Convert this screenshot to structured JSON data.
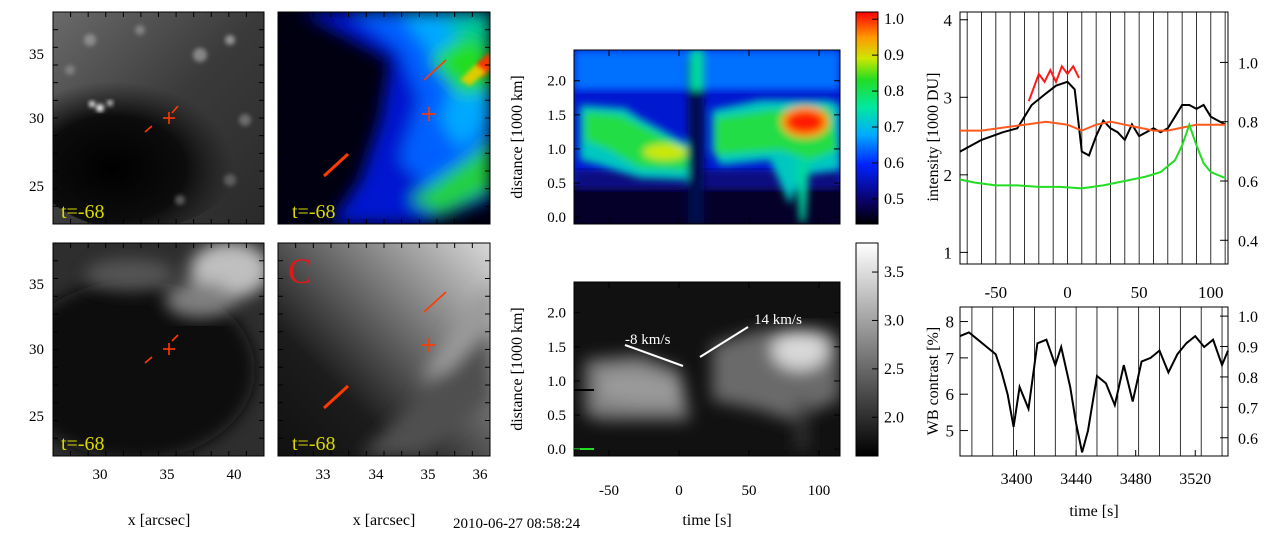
{
  "timestamp": "2010-06-27 08:58:24",
  "panels": {
    "img_label": "t=-68",
    "panel_letter": "C",
    "x_label": "x [arcsec]",
    "left_x_ticks": [
      "30",
      "35",
      "40"
    ],
    "mid_x_ticks": [
      "33",
      "34",
      "35",
      "36"
    ],
    "y_ticks": [
      "35",
      "30",
      "25"
    ]
  },
  "colors": {
    "marker": "#ff3a00",
    "label": "#d8d800",
    "red_curve": "#ff1a1a",
    "orange_curve": "#ff5a1e",
    "green_curve": "#22dd22"
  },
  "chart_data": [
    {
      "type": "heatmap",
      "name": "time-distance-color",
      "xlabel": "time [s]",
      "ylabel": "distance [1000 km]",
      "xlim": [
        -75,
        115
      ],
      "ylim": [
        -0.1,
        2.45
      ],
      "y_ticks": [
        "0.0",
        "0.5",
        "1.0",
        "1.5",
        "2.0"
      ],
      "colorbar": {
        "range": [
          0.43,
          1.02
        ],
        "ticks": [
          "1.0",
          "0.9",
          "0.8",
          "0.7",
          "0.6",
          "0.5"
        ]
      }
    },
    {
      "type": "heatmap",
      "name": "time-distance-gray",
      "xlabel": "time [s]",
      "ylabel": "distance [1000 km]",
      "xlim": [
        -75,
        115
      ],
      "ylim": [
        -0.1,
        2.45
      ],
      "x_ticks": [
        "-50",
        "0",
        "50",
        "100"
      ],
      "y_ticks": [
        "0.0",
        "0.5",
        "1.0",
        "1.5",
        "2.0"
      ],
      "colorbar": {
        "range": [
          1.6,
          3.8
        ],
        "ticks": [
          "3.5",
          "3.0",
          "2.5",
          "2.0"
        ]
      },
      "annotations": [
        "-8 km/s",
        "14 km/s"
      ]
    },
    {
      "type": "line",
      "name": "intensity-lightcurves",
      "ylabel": "intensity [1000 DU]",
      "xlim": [
        -75,
        112
      ],
      "ylim_left": [
        0.85,
        4.1
      ],
      "ylim_right": [
        0.32,
        1.17
      ],
      "x_ticks": [
        "-50",
        "0",
        "50",
        "100"
      ],
      "left_ticks": [
        "4",
        "3",
        "2",
        "1"
      ],
      "right_ticks": [
        "1.0",
        "0.8",
        "0.6",
        "0.4"
      ],
      "series": [
        {
          "name": "red",
          "axis": "left",
          "x": [
            -27,
            -24,
            -20,
            -16,
            -12,
            -8,
            -4,
            0,
            4,
            8
          ],
          "values": [
            2.95,
            3.1,
            3.3,
            3.2,
            3.35,
            3.2,
            3.4,
            3.3,
            3.4,
            3.25
          ]
        },
        {
          "name": "black",
          "axis": "left",
          "x": [
            -75,
            -60,
            -45,
            -35,
            -30,
            -25,
            -15,
            -8,
            0,
            5,
            10,
            15,
            20,
            25,
            30,
            35,
            40,
            45,
            50,
            55,
            60,
            65,
            70,
            75,
            80,
            85,
            90,
            95,
            100,
            105,
            110
          ],
          "values": [
            2.3,
            2.45,
            2.55,
            2.6,
            2.75,
            2.9,
            3.05,
            3.15,
            3.2,
            3.1,
            2.3,
            2.25,
            2.5,
            2.7,
            2.6,
            2.55,
            2.45,
            2.65,
            2.5,
            2.55,
            2.6,
            2.55,
            2.6,
            2.75,
            2.9,
            2.9,
            2.85,
            2.9,
            2.75,
            2.7,
            2.65
          ]
        },
        {
          "name": "orange",
          "axis": "right",
          "x": [
            -75,
            -60,
            -45,
            -30,
            -15,
            0,
            10,
            20,
            30,
            40,
            50,
            60,
            70,
            80,
            90,
            100,
            110
          ],
          "values": [
            0.77,
            0.77,
            0.78,
            0.79,
            0.8,
            0.79,
            0.77,
            0.79,
            0.8,
            0.79,
            0.78,
            0.77,
            0.77,
            0.78,
            0.79,
            0.79,
            0.79
          ]
        },
        {
          "name": "green",
          "axis": "right",
          "x": [
            -75,
            -65,
            -50,
            -35,
            -20,
            -5,
            10,
            25,
            40,
            55,
            65,
            75,
            80,
            85,
            90,
            95,
            100,
            110
          ],
          "values": [
            0.605,
            0.595,
            0.585,
            0.585,
            0.58,
            0.58,
            0.575,
            0.585,
            0.6,
            0.615,
            0.63,
            0.67,
            0.72,
            0.79,
            0.72,
            0.66,
            0.63,
            0.61
          ]
        }
      ]
    },
    {
      "type": "line",
      "name": "wb-contrast",
      "xlabel": "time [s]",
      "ylabel": "WB contrast [%]",
      "xlim": [
        3362,
        3542
      ],
      "ylim_left": [
        4.3,
        8.4
      ],
      "ylim_right": [
        0.54,
        1.03
      ],
      "x_ticks": [
        "3400",
        "3440",
        "3480",
        "3520"
      ],
      "left_ticks": [
        "8",
        "7",
        "6",
        "5"
      ],
      "right_ticks": [
        "1.0",
        "0.9",
        "0.8",
        "0.7",
        "0.6"
      ],
      "series": [
        {
          "name": "contrast",
          "axis": "left",
          "x": [
            3362,
            3368,
            3374,
            3380,
            3386,
            3390,
            3394,
            3398,
            3402,
            3408,
            3414,
            3420,
            3426,
            3430,
            3436,
            3440,
            3444,
            3448,
            3454,
            3460,
            3466,
            3472,
            3478,
            3484,
            3490,
            3496,
            3502,
            3508,
            3514,
            3520,
            3526,
            3532,
            3538,
            3542
          ],
          "values": [
            7.6,
            7.7,
            7.5,
            7.3,
            7.1,
            6.6,
            6.0,
            5.1,
            6.2,
            5.6,
            7.4,
            7.5,
            6.8,
            7.3,
            6.2,
            5.2,
            4.4,
            5.0,
            6.5,
            6.3,
            5.7,
            6.8,
            5.8,
            6.9,
            7.0,
            7.2,
            6.6,
            7.1,
            7.4,
            7.6,
            7.3,
            7.5,
            6.8,
            7.2
          ]
        }
      ]
    }
  ]
}
